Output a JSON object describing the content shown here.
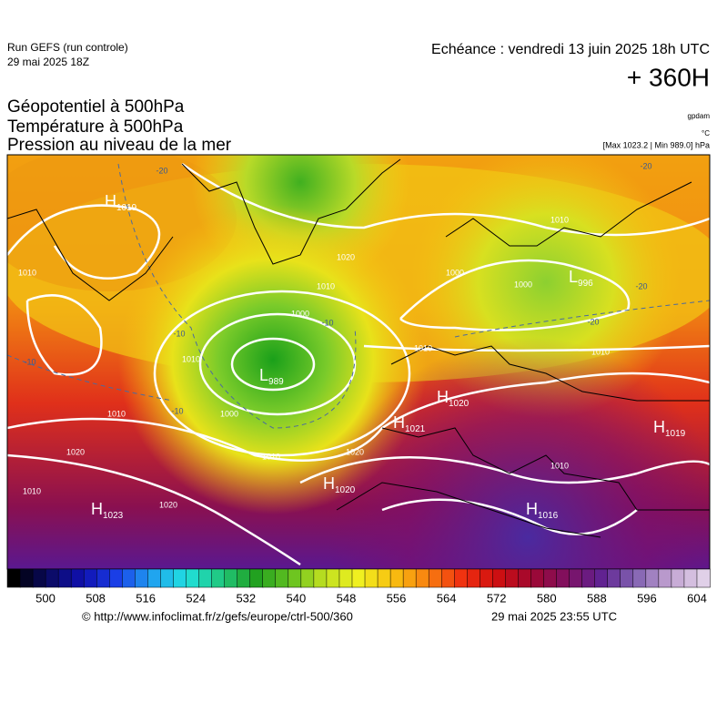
{
  "header": {
    "run": "Run GEFS (run controle)",
    "run_date": "29 mai 2025 18Z",
    "forecast": "Echéance : vendredi 13 juin 2025 18h UTC",
    "lead": "+ 360H",
    "titles": [
      "Géopotentiel à 500hPa",
      "Température à 500hPa",
      "Pression au niveau de la mer"
    ],
    "units": [
      "gpdam",
      "°C",
      "[Max 1023.2 | Min 989.0] hPa"
    ]
  },
  "map": {
    "pressure_centers": [
      {
        "kind": "H",
        "value": 1019
      },
      {
        "kind": "L",
        "value": 989
      },
      {
        "kind": "H",
        "value": 1020
      },
      {
        "kind": "H",
        "value": 1021
      },
      {
        "kind": "H",
        "value": 1020
      },
      {
        "kind": "H",
        "value": 1023
      },
      {
        "kind": "H",
        "value": 1016
      },
      {
        "kind": "H",
        "value": 1019
      },
      {
        "kind": "L",
        "value": 996
      }
    ],
    "contour_labels": [
      1010,
      1010,
      1020,
      1000,
      1000,
      1010,
      1010,
      1010,
      1020,
      1020,
      1010,
      1000,
      1000,
      1010,
      1010,
      1010,
      1020,
      1010
    ],
    "temperature_labels": [
      -20,
      -20,
      -10,
      -10,
      -10,
      -10,
      -20,
      -20
    ]
  },
  "colorbar": {
    "ticks": [
      500,
      508,
      516,
      524,
      532,
      540,
      548,
      556,
      564,
      572,
      580,
      588,
      596,
      604
    ]
  },
  "footer": {
    "source": "© http://www.infoclimat.fr/z/gefs/europe/ctrl-500/360",
    "issued": "29 mai 2025 23:55 UTC"
  }
}
